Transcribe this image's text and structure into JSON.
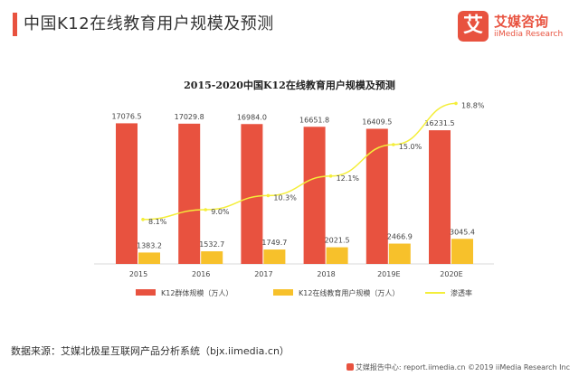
{
  "header": {
    "title": "中国K12在线教育用户规模及预测",
    "accent": "#e8523f"
  },
  "logo": {
    "glyph": "艾",
    "name": "艾媒咨询",
    "sub": "iiMedia Research",
    "color": "#e8523f"
  },
  "source": "数据来源：艾媒北极星互联网产品分析系统（bjx.iimedia.cn）",
  "footer": "艾媒报告中心: report.iimedia.cn ©2019  iiMedia Research Inc",
  "chart_data": {
    "type": "bar",
    "title": "2015-2020中国K12在线教育用户规模及预测",
    "categories": [
      "2015",
      "2016",
      "2017",
      "2018",
      "2019E",
      "2020E"
    ],
    "series": [
      {
        "name": "K12群体规模（万人）",
        "type": "bar",
        "color": "#e8523f",
        "values": [
          17076.5,
          17029.8,
          16984.0,
          16651.8,
          16409.5,
          16231.5
        ],
        "labels": [
          "17076.5",
          "17029.8",
          "16984.0",
          "16651.8",
          "16409.5",
          "16231.5"
        ]
      },
      {
        "name": "K12在线教育用户规模（万人）",
        "type": "bar",
        "color": "#f7c12b",
        "values": [
          1383.2,
          1532.7,
          1749.7,
          2021.5,
          2466.9,
          3045.4
        ],
        "labels": [
          "1383.2",
          "1532.7",
          "1749.7",
          "2021.5",
          "2466.9",
          "3045.4"
        ]
      },
      {
        "name": "渗透率",
        "type": "line",
        "color": "#f4ee3a",
        "values": [
          8.1,
          9.0,
          10.3,
          12.1,
          15.0,
          18.8
        ],
        "labels": [
          "8.1%",
          "9.0%",
          "10.3%",
          "12.1%",
          "15.0%",
          "18.8%"
        ]
      }
    ],
    "ylim": [
      0,
      18000
    ],
    "y2lim": [
      0,
      20
    ],
    "grid": false,
    "legend": "bottom"
  }
}
